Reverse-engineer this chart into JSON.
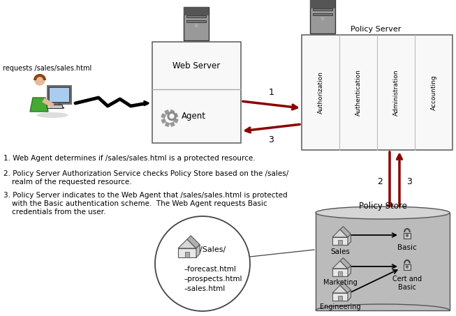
{
  "bg_color": "#ffffff",
  "policy_server_label": "Policy Server",
  "web_server_label": "Web Server",
  "agent_label": "Agent",
  "policy_store_label": "Policy Store",
  "request_label": "requests /sales/sales.html",
  "ps_tabs": [
    "Authorization",
    "Authentication",
    "Administration",
    "Accounting"
  ],
  "arrow_color": "#8B0000",
  "desc1": "1. Web Agent determines if /sales/sales.html is a protected resource.",
  "desc2a": "2. Policy Server Authorization Service checks Policy Store based on the /sales/",
  "desc2b": "   realm of the requested resource.",
  "desc3a": "3. Policy Server indicates to the Web Agent that /sales/sales.html is protected",
  "desc3b": "   with the Basic authentication scheme.  The Web Agent requests Basic",
  "desc3c": "   credentials from the user.",
  "sales_circle_files": [
    "forecast.html",
    "prospects.html",
    "sales.html"
  ],
  "label_num1": "1",
  "label_num2": "2",
  "label_num3a": "3",
  "label_num3b": "3"
}
